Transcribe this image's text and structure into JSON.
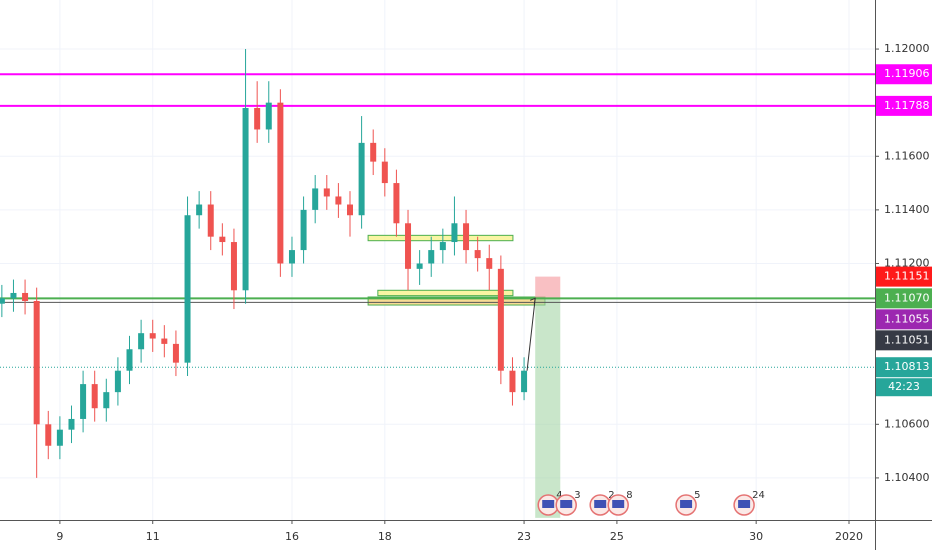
{
  "chart_data": {
    "type": "candlestick",
    "x": [
      -1.25,
      -1.0,
      -0.75,
      -0.5,
      -0.25,
      0,
      0.25,
      0.5,
      0.75,
      1.0,
      1.25,
      1.5,
      1.75,
      2.0,
      2.25,
      2.5,
      2.75,
      3.0,
      3.25,
      3.5,
      3.75,
      4.0,
      4.25,
      4.5,
      4.75,
      5.0,
      5.25,
      5.5,
      5.75,
      6.0,
      6.25,
      6.5,
      6.75,
      7.0,
      7.25,
      7.5,
      7.75,
      8.0,
      8.25,
      8.5,
      8.75,
      9.0,
      9.25,
      9.5,
      9.75,
      10.0
    ],
    "open": [
      1.1105,
      1.1107,
      1.1109,
      1.1106,
      1.106,
      1.1052,
      1.1058,
      1.1062,
      1.1075,
      1.1066,
      1.1072,
      1.108,
      1.1088,
      1.1094,
      1.1092,
      1.109,
      1.1083,
      1.1138,
      1.1142,
      1.113,
      1.1128,
      1.111,
      1.1178,
      1.117,
      1.118,
      1.112,
      1.1125,
      1.114,
      1.1148,
      1.1145,
      1.1142,
      1.1138,
      1.1165,
      1.1158,
      1.115,
      1.1135,
      1.1118,
      1.112,
      1.1125,
      1.1128,
      1.1135,
      1.1125,
      1.1122,
      1.1118,
      1.108,
      1.1072
    ],
    "high": [
      1.1112,
      1.1114,
      1.1114,
      1.1111,
      1.1065,
      1.1063,
      1.1067,
      1.108,
      1.108,
      1.1077,
      1.1085,
      1.1093,
      1.1099,
      1.1099,
      1.1097,
      1.1095,
      1.1145,
      1.1147,
      1.1147,
      1.1135,
      1.1133,
      1.12,
      1.1188,
      1.1188,
      1.1185,
      1.113,
      1.1145,
      1.1153,
      1.1153,
      1.115,
      1.1147,
      1.1175,
      1.117,
      1.1163,
      1.1155,
      1.114,
      1.1125,
      1.113,
      1.1133,
      1.1145,
      1.114,
      1.113,
      1.1127,
      1.1123,
      1.1085,
      1.1085
    ],
    "low": [
      1.11,
      1.1102,
      1.1101,
      1.104,
      1.1047,
      1.1047,
      1.1053,
      1.1057,
      1.1061,
      1.1061,
      1.1067,
      1.1075,
      1.1083,
      1.1087,
      1.1085,
      1.1078,
      1.1078,
      1.1133,
      1.1125,
      1.1123,
      1.1103,
      1.1105,
      1.1165,
      1.1165,
      1.1115,
      1.1115,
      1.112,
      1.1135,
      1.114,
      1.1137,
      1.113,
      1.1133,
      1.1153,
      1.1145,
      1.113,
      1.111,
      1.1112,
      1.1115,
      1.112,
      1.1123,
      1.112,
      1.1117,
      1.111,
      1.1075,
      1.1067,
      1.1069
    ],
    "close": [
      1.1107,
      1.1109,
      1.1106,
      1.106,
      1.1052,
      1.1058,
      1.1062,
      1.1075,
      1.1066,
      1.1072,
      1.108,
      1.1088,
      1.1094,
      1.1092,
      1.109,
      1.1083,
      1.1138,
      1.1142,
      1.113,
      1.1128,
      1.111,
      1.1178,
      1.117,
      1.118,
      1.112,
      1.1125,
      1.114,
      1.1148,
      1.1145,
      1.1142,
      1.1138,
      1.1165,
      1.1158,
      1.115,
      1.1135,
      1.1118,
      1.112,
      1.1125,
      1.1128,
      1.1135,
      1.1125,
      1.1122,
      1.1118,
      1.108,
      1.1072,
      1.108
    ],
    "up_color": "#26a69a",
    "down_color": "#ef5350",
    "xlim": [
      -1.29,
      17.56
    ],
    "xticks": [
      {
        "value": 0,
        "label": "9"
      },
      {
        "value": 2,
        "label": "11"
      },
      {
        "value": 5,
        "label": "16"
      },
      {
        "value": 7,
        "label": "18"
      },
      {
        "value": 10,
        "label": "23"
      },
      {
        "value": 12,
        "label": "25"
      },
      {
        "value": 15,
        "label": "30"
      },
      {
        "value": 17,
        "label": "2020"
      }
    ],
    "ylim": [
      1.10243,
      1.12183
    ],
    "yticks": [
      {
        "value": 1.12,
        "label": "1.12000"
      },
      {
        "value": 1.116,
        "label": "1.11600"
      },
      {
        "value": 1.114,
        "label": "1.11400"
      },
      {
        "value": 1.112,
        "label": "1.11200"
      },
      {
        "value": 1.106,
        "label": "1.10600"
      },
      {
        "value": 1.104,
        "label": "1.10400"
      }
    ],
    "grid": true,
    "price_lines": [
      {
        "value": 1.11906,
        "label": "1.11906",
        "color": "#ff00ff",
        "line": "solid"
      },
      {
        "value": 1.11788,
        "label": "1.11788",
        "color": "#ff00ff",
        "line": "solid"
      },
      {
        "value": 1.11151,
        "label": "1.11151",
        "color": "#ff1a1a",
        "line": "none"
      },
      {
        "value": 1.1107,
        "label": "1.11070",
        "color": "#4caf50",
        "line": "solid"
      },
      {
        "value": 1.11055,
        "label": "1.11055",
        "color": "#9c27b0",
        "line": "thin"
      },
      {
        "value": 1.11051,
        "label": "1.11051",
        "color": "#363a45",
        "line": "none"
      },
      {
        "value": 1.10813,
        "label": "1.10813",
        "color": "#26a69a",
        "line": "dotted",
        "countdown": "42:23"
      }
    ],
    "zones": [
      {
        "x": [
          6.64,
          9.76
        ],
        "y": [
          1.11285,
          1.11305
        ],
        "color": "#f7f28c"
      },
      {
        "x": [
          6.85,
          9.76
        ],
        "y": [
          1.1108,
          1.111
        ],
        "color": "#f7f28c"
      },
      {
        "x": [
          6.64,
          10.45
        ],
        "y": [
          1.11045,
          1.11075
        ],
        "color": "#f5d27a"
      }
    ],
    "position": {
      "x": [
        10.24,
        10.78
      ],
      "entry": 1.1107,
      "stop": 1.11151,
      "target": 1.10251
    },
    "events": [
      {
        "x": 10.52,
        "labels": [
          "4",
          "3"
        ]
      },
      {
        "x": 11.64,
        "labels": [
          "2",
          "8"
        ]
      },
      {
        "x": 13.49,
        "labels": [
          "5"
        ]
      },
      {
        "x": 14.74,
        "labels": [
          "24"
        ]
      }
    ]
  }
}
